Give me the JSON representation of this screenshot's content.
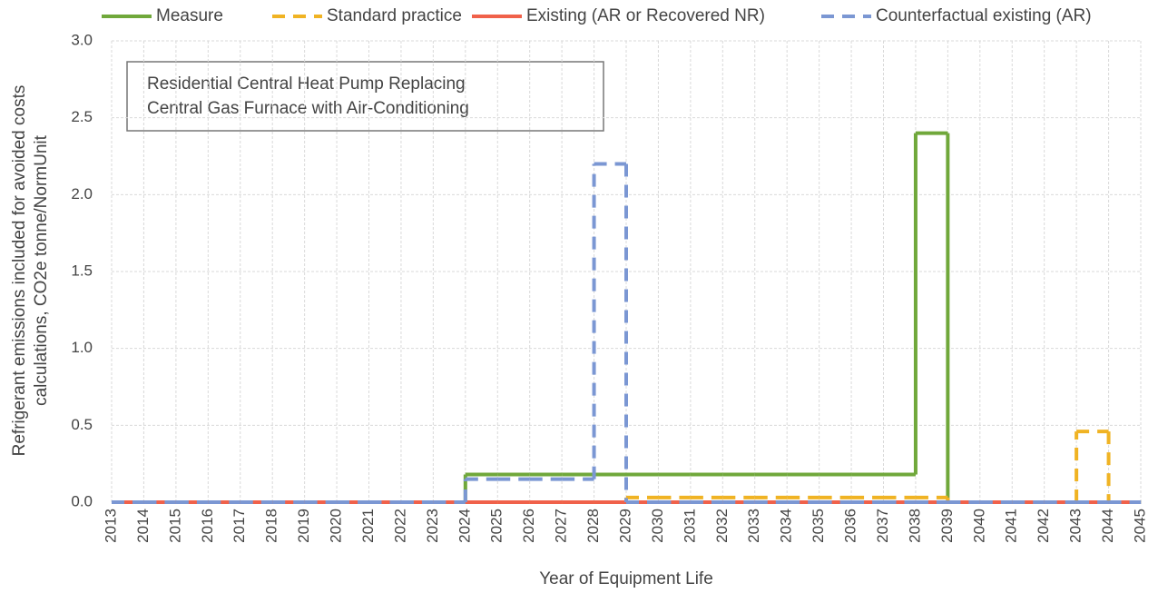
{
  "chart_data": {
    "type": "step",
    "annotation": [
      "Residential Central Heat Pump Replacing",
      "Central Gas Furnace with Air-Conditioning"
    ],
    "xlabel": "Year of Equipment Life",
    "ylabel": [
      "Refrigerant emissions included for avoided costs",
      "calculations, CO2e tonne/NormUnit"
    ],
    "x": [
      2013,
      2014,
      2015,
      2016,
      2017,
      2018,
      2019,
      2020,
      2021,
      2022,
      2023,
      2024,
      2025,
      2026,
      2027,
      2028,
      2029,
      2030,
      2031,
      2032,
      2033,
      2034,
      2035,
      2036,
      2037,
      2038,
      2039,
      2040,
      2041,
      2042,
      2043,
      2044,
      2045
    ],
    "xlim": [
      2013,
      2045
    ],
    "xticks": [
      2013,
      2014,
      2015,
      2016,
      2017,
      2018,
      2019,
      2020,
      2021,
      2022,
      2023,
      2024,
      2025,
      2026,
      2027,
      2028,
      2029,
      2030,
      2031,
      2032,
      2033,
      2034,
      2035,
      2036,
      2037,
      2038,
      2039,
      2040,
      2041,
      2042,
      2043,
      2044,
      2045
    ],
    "ylim": [
      0,
      3
    ],
    "yticks": [
      {
        "value": 0,
        "label": "0.0"
      },
      {
        "value": 0.5,
        "label": "0.5"
      },
      {
        "value": 1,
        "label": "1.0"
      },
      {
        "value": 1.5,
        "label": "1.5"
      },
      {
        "value": 2,
        "label": "2.0"
      },
      {
        "value": 2.5,
        "label": "2.5"
      },
      {
        "value": 3,
        "label": "3.0"
      }
    ],
    "grid": true,
    "series": [
      {
        "name": "Measure",
        "color": "#70a83b",
        "dashed": false,
        "values": [
          0,
          0,
          0,
          0,
          0,
          0,
          0,
          0,
          0,
          0,
          0,
          0.18,
          0.18,
          0.18,
          0.18,
          0.18,
          0.18,
          0.18,
          0.18,
          0.18,
          0.18,
          0.18,
          0.18,
          0.18,
          0.18,
          2.4,
          0,
          0,
          0,
          0,
          0,
          0,
          0
        ]
      },
      {
        "name": "Standard practice",
        "color": "#f0b323",
        "dashed": true,
        "values": [
          0,
          0,
          0,
          0,
          0,
          0,
          0,
          0,
          0,
          0,
          0,
          0,
          0,
          0,
          0,
          0,
          0.03,
          0.03,
          0.03,
          0.03,
          0.03,
          0.03,
          0.03,
          0.03,
          0.03,
          0.03,
          0,
          0,
          0,
          0,
          0.46,
          0,
          0
        ]
      },
      {
        "name": "Existing (AR or Recovered NR)",
        "color": "#f0614a",
        "dashed": false,
        "values": [
          0,
          0,
          0,
          0,
          0,
          0,
          0,
          0,
          0,
          0,
          0,
          0,
          0,
          0,
          0,
          0,
          0,
          0,
          0,
          0,
          0,
          0,
          0,
          0,
          0,
          0,
          0,
          0,
          0,
          0,
          0,
          0,
          0
        ]
      },
      {
        "name": "Counterfactual existing (AR)",
        "color": "#7b97d3",
        "dashed": true,
        "values": [
          0,
          0,
          0,
          0,
          0,
          0,
          0,
          0,
          0,
          0,
          0,
          0.15,
          0.15,
          0.15,
          0.15,
          2.2,
          0,
          0,
          0,
          0,
          0,
          0,
          0,
          0,
          0,
          0,
          0,
          0,
          0,
          0,
          0,
          0,
          0
        ]
      }
    ]
  }
}
